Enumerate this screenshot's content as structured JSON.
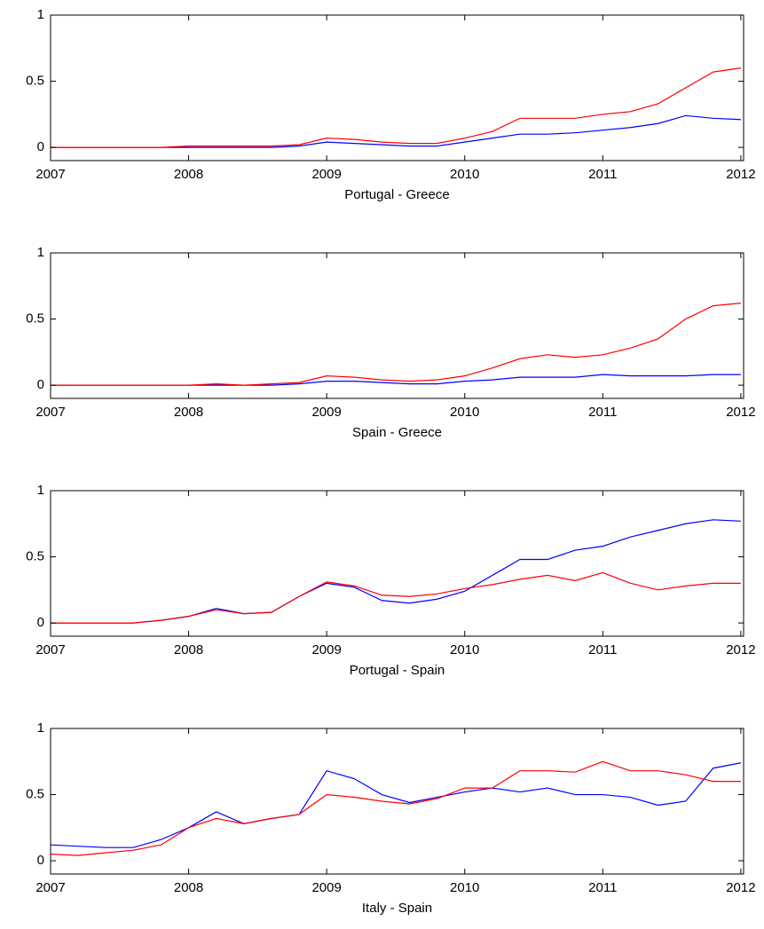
{
  "chart_data": [
    {
      "type": "line",
      "xlabel": "Portugal - Greece",
      "x": [
        2007,
        2007.2,
        2007.4,
        2007.6,
        2007.8,
        2008,
        2008.2,
        2008.4,
        2008.6,
        2008.8,
        2009,
        2009.2,
        2009.4,
        2009.6,
        2009.8,
        2010,
        2010.2,
        2010.4,
        2010.6,
        2010.8,
        2011,
        2011.2,
        2011.4,
        2011.6,
        2011.8,
        2012
      ],
      "series": [
        {
          "color": "#0000ff",
          "values": [
            0,
            0,
            0,
            0,
            0,
            0,
            0,
            0,
            0,
            0.01,
            0.04,
            0.03,
            0.02,
            0.01,
            0.01,
            0.04,
            0.07,
            0.1,
            0.1,
            0.11,
            0.13,
            0.15,
            0.18,
            0.24,
            0.22,
            0.21
          ]
        },
        {
          "color": "#ff0000",
          "values": [
            0,
            0,
            0,
            0,
            0,
            0.01,
            0.01,
            0.01,
            0.01,
            0.02,
            0.07,
            0.06,
            0.04,
            0.03,
            0.03,
            0.07,
            0.12,
            0.22,
            0.22,
            0.22,
            0.25,
            0.27,
            0.33,
            0.45,
            0.57,
            0.6
          ]
        }
      ],
      "xlim": [
        2007,
        2012.02
      ],
      "xticks": [
        2007,
        2008,
        2009,
        2010,
        2011,
        2012
      ],
      "ylim": [
        -0.1,
        1
      ],
      "yticks": [
        0,
        0.5,
        1
      ],
      "grid": false
    },
    {
      "type": "line",
      "xlabel": "Spain - Greece",
      "x": [
        2007,
        2007.2,
        2007.4,
        2007.6,
        2007.8,
        2008,
        2008.2,
        2008.4,
        2008.6,
        2008.8,
        2009,
        2009.2,
        2009.4,
        2009.6,
        2009.8,
        2010,
        2010.2,
        2010.4,
        2010.6,
        2010.8,
        2011,
        2011.2,
        2011.4,
        2011.6,
        2011.8,
        2012
      ],
      "series": [
        {
          "color": "#0000ff",
          "values": [
            0,
            0,
            0,
            0,
            0,
            0,
            0,
            0,
            0,
            0.01,
            0.03,
            0.03,
            0.02,
            0.01,
            0.01,
            0.03,
            0.04,
            0.06,
            0.06,
            0.06,
            0.08,
            0.07,
            0.07,
            0.07,
            0.08,
            0.08
          ]
        },
        {
          "color": "#ff0000",
          "values": [
            0,
            0,
            0,
            0,
            0,
            0,
            0.01,
            0,
            0.01,
            0.02,
            0.07,
            0.06,
            0.04,
            0.03,
            0.04,
            0.07,
            0.13,
            0.2,
            0.23,
            0.21,
            0.23,
            0.28,
            0.35,
            0.5,
            0.6,
            0.62
          ]
        }
      ],
      "xlim": [
        2007,
        2012.02
      ],
      "xticks": [
        2007,
        2008,
        2009,
        2010,
        2011,
        2012
      ],
      "ylim": [
        -0.1,
        1
      ],
      "yticks": [
        0,
        0.5,
        1
      ],
      "grid": false
    },
    {
      "type": "line",
      "xlabel": "Portugal - Spain",
      "x": [
        2007,
        2007.2,
        2007.4,
        2007.6,
        2007.8,
        2008,
        2008.2,
        2008.4,
        2008.6,
        2008.8,
        2009,
        2009.2,
        2009.4,
        2009.6,
        2009.8,
        2010,
        2010.2,
        2010.4,
        2010.6,
        2010.8,
        2011,
        2011.2,
        2011.4,
        2011.6,
        2011.8,
        2012
      ],
      "series": [
        {
          "color": "#0000ff",
          "values": [
            0,
            0,
            0,
            0,
            0.02,
            0.05,
            0.11,
            0.07,
            0.08,
            0.2,
            0.3,
            0.27,
            0.17,
            0.15,
            0.18,
            0.24,
            0.36,
            0.48,
            0.48,
            0.55,
            0.58,
            0.65,
            0.7,
            0.75,
            0.78,
            0.77
          ]
        },
        {
          "color": "#ff0000",
          "values": [
            0,
            0,
            0,
            0,
            0.02,
            0.05,
            0.1,
            0.07,
            0.08,
            0.2,
            0.31,
            0.28,
            0.21,
            0.2,
            0.22,
            0.26,
            0.29,
            0.33,
            0.36,
            0.32,
            0.38,
            0.3,
            0.25,
            0.28,
            0.3,
            0.3
          ]
        }
      ],
      "xlim": [
        2007,
        2012.02
      ],
      "xticks": [
        2007,
        2008,
        2009,
        2010,
        2011,
        2012
      ],
      "ylim": [
        -0.1,
        1
      ],
      "yticks": [
        0,
        0.5,
        1
      ],
      "grid": false
    },
    {
      "type": "line",
      "xlabel": "Italy - Spain",
      "x": [
        2007,
        2007.2,
        2007.4,
        2007.6,
        2007.8,
        2008,
        2008.2,
        2008.4,
        2008.6,
        2008.8,
        2009,
        2009.2,
        2009.4,
        2009.6,
        2009.8,
        2010,
        2010.2,
        2010.4,
        2010.6,
        2010.8,
        2011,
        2011.2,
        2011.4,
        2011.6,
        2011.8,
        2012
      ],
      "series": [
        {
          "color": "#0000ff",
          "values": [
            0.12,
            0.11,
            0.1,
            0.1,
            0.16,
            0.25,
            0.37,
            0.28,
            0.32,
            0.35,
            0.68,
            0.62,
            0.5,
            0.44,
            0.48,
            0.52,
            0.55,
            0.52,
            0.55,
            0.5,
            0.5,
            0.48,
            0.42,
            0.45,
            0.7,
            0.74
          ]
        },
        {
          "color": "#ff0000",
          "values": [
            0.05,
            0.04,
            0.06,
            0.08,
            0.12,
            0.25,
            0.32,
            0.28,
            0.32,
            0.35,
            0.5,
            0.48,
            0.45,
            0.43,
            0.47,
            0.55,
            0.55,
            0.68,
            0.68,
            0.67,
            0.75,
            0.68,
            0.68,
            0.65,
            0.6,
            0.6
          ]
        }
      ],
      "xlim": [
        2007,
        2012.02
      ],
      "xticks": [
        2007,
        2008,
        2009,
        2010,
        2011,
        2012
      ],
      "ylim": [
        -0.1,
        1
      ],
      "yticks": [
        0,
        0.5,
        1
      ],
      "grid": false
    }
  ]
}
